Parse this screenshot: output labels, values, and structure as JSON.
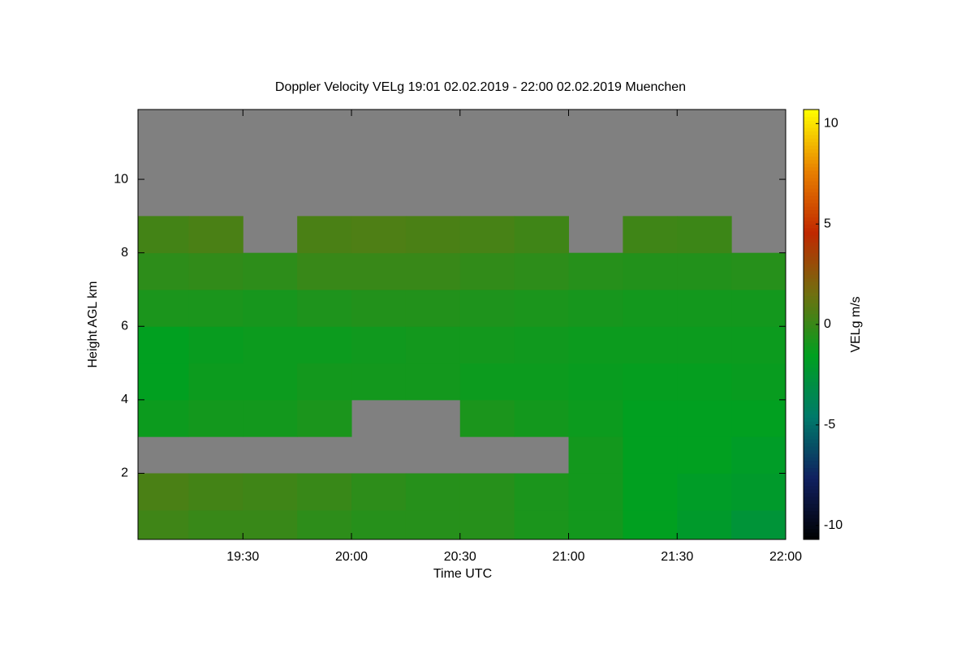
{
  "chart_data": {
    "type": "heatmap",
    "title": "Doppler Velocity VELg   19:01 02.02.2019 - 22:00 02.02.2019 Muenchen",
    "xlabel": "Time UTC",
    "ylabel": "Height AGL km",
    "zlabel": "VELg m/s",
    "xlim": [
      "19:01",
      "22:00"
    ],
    "xticks": [
      "19:30",
      "20:00",
      "20:30",
      "21:00",
      "21:30",
      "22:00"
    ],
    "ylim": [
      0.2,
      11.9
    ],
    "yticks": [
      2,
      4,
      6,
      8,
      10
    ],
    "zlim": [
      -10.7,
      10.7
    ],
    "zticks": [
      -10,
      -5,
      0,
      5,
      10
    ],
    "x_edges": [
      "19:01",
      "19:15",
      "19:30",
      "19:45",
      "20:00",
      "20:15",
      "20:30",
      "20:45",
      "21:00",
      "21:15",
      "21:30",
      "21:45",
      "22:00"
    ],
    "y_edges": [
      0.2,
      1,
      2,
      3,
      4,
      5,
      6,
      7,
      8,
      9
    ],
    "z": [
      [
        0.2,
        0,
        0,
        -0.3,
        -0.5,
        -0.5,
        -0.5,
        -0.8,
        -1,
        -1.5,
        -2,
        -2.5
      ],
      [
        0.5,
        0.3,
        0.2,
        0,
        -0.3,
        -0.5,
        -0.5,
        -0.8,
        -1,
        -1.5,
        -1.8,
        -2
      ],
      [
        null,
        null,
        null,
        null,
        null,
        null,
        null,
        null,
        -1,
        -1.5,
        -1.5,
        -1.8
      ],
      [
        -1.2,
        -1,
        -1,
        -0.8,
        null,
        null,
        -0.8,
        -1,
        -1.2,
        -1.5,
        -1.5,
        -1.5
      ],
      [
        -1.5,
        -1.2,
        -1.2,
        -1,
        -1,
        -1,
        -1.2,
        -1.2,
        -1.3,
        -1.4,
        -1.4,
        -1.3
      ],
      [
        -1.5,
        -1.3,
        -1.2,
        -1.2,
        -1.1,
        -1,
        -1,
        -1.1,
        -1.2,
        -1.2,
        -1.2,
        -1.2
      ],
      [
        -0.8,
        -0.8,
        -0.9,
        -0.7,
        -0.6,
        -0.6,
        -0.7,
        -0.8,
        -0.9,
        -1,
        -1,
        -1
      ],
      [
        -0.3,
        -0.2,
        -0.3,
        0,
        0,
        0,
        -0.2,
        -0.3,
        -0.5,
        -0.6,
        -0.6,
        -0.5
      ],
      [
        0.3,
        0.5,
        null,
        0.5,
        0.6,
        0.5,
        0.4,
        0.2,
        null,
        0.2,
        0.1,
        null
      ]
    ],
    "colorscale": [
      "#000000",
      "#102060",
      "#007a6a",
      "#00a020",
      "#707010",
      "#c02800",
      "#e88000",
      "#ffff00"
    ],
    "missing_color": "#808080"
  }
}
